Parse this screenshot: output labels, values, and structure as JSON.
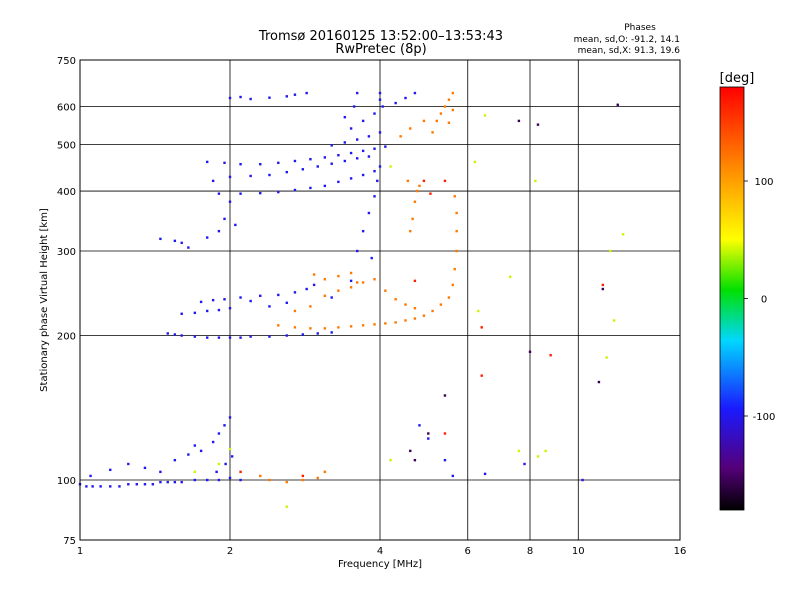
{
  "chart_data": {
    "type": "scatter",
    "title": "Tromsø 20160125 13:52:00–13:53:43",
    "subtitle": "RwPretec (8p)",
    "xlabel": "Frequency [MHz]",
    "ylabel": "Stationary phase Virtual Height [km]",
    "x_scale": "log",
    "y_scale": "log",
    "xlim": [
      1,
      16
    ],
    "ylim": [
      75,
      750
    ],
    "x_ticks": [
      1,
      2,
      4,
      6,
      8,
      10,
      16
    ],
    "x_tick_labels": [
      "1",
      "2",
      "4",
      "6",
      "8",
      "10",
      "16"
    ],
    "y_ticks": [
      75,
      100,
      200,
      300,
      400,
      500,
      600,
      750
    ],
    "y_tick_labels": [
      "75",
      "100",
      "200",
      "300",
      "400",
      "500",
      "600",
      "750"
    ],
    "grid": true,
    "stats": {
      "heading": "Phases",
      "line_o": "mean, sd,O: -91.2, 14.1",
      "line_x": "mean, sd,X:  91.3, 19.6"
    },
    "colorbar": {
      "label": "[deg]",
      "range": [
        -180,
        180
      ],
      "ticks": [
        100,
        0,
        -100
      ],
      "tick_labels": [
        "100",
        "0",
        "-100"
      ],
      "colormap": "rainbow: black(-180) → purple → blue → cyan → green → yellow → orange → red(180)"
    },
    "series": [
      {
        "phase": -100,
        "points": [
          [
            1.0,
            98
          ],
          [
            1.03,
            97
          ],
          [
            1.06,
            97
          ],
          [
            1.1,
            97
          ],
          [
            1.15,
            97
          ],
          [
            1.2,
            97
          ],
          [
            1.25,
            98
          ],
          [
            1.3,
            98
          ],
          [
            1.35,
            98
          ],
          [
            1.4,
            98
          ],
          [
            1.45,
            99
          ],
          [
            1.5,
            99
          ],
          [
            1.55,
            99
          ],
          [
            1.6,
            99
          ],
          [
            1.7,
            100
          ],
          [
            1.8,
            100
          ],
          [
            1.9,
            100
          ],
          [
            2.0,
            101
          ],
          [
            2.1,
            100
          ],
          [
            1.05,
            102
          ],
          [
            1.15,
            105
          ],
          [
            1.25,
            108
          ],
          [
            1.35,
            106
          ],
          [
            1.45,
            104
          ],
          [
            1.55,
            110
          ],
          [
            1.65,
            113
          ],
          [
            1.7,
            118
          ],
          [
            1.75,
            115
          ],
          [
            1.85,
            120
          ],
          [
            1.9,
            125
          ],
          [
            1.95,
            130
          ],
          [
            2.0,
            135
          ],
          [
            2.02,
            112
          ],
          [
            1.96,
            108
          ],
          [
            1.88,
            104
          ],
          [
            1.5,
            202
          ],
          [
            1.55,
            201
          ],
          [
            1.6,
            200
          ],
          [
            1.7,
            199
          ],
          [
            1.8,
            198
          ],
          [
            1.9,
            198
          ],
          [
            2.0,
            198
          ],
          [
            2.1,
            198
          ],
          [
            2.2,
            199
          ],
          [
            2.4,
            199
          ],
          [
            2.6,
            200
          ],
          [
            2.8,
            201
          ],
          [
            3.0,
            202
          ],
          [
            3.2,
            203
          ],
          [
            1.6,
            222
          ],
          [
            1.7,
            223
          ],
          [
            1.8,
            225
          ],
          [
            1.9,
            226
          ],
          [
            2.0,
            228
          ],
          [
            1.75,
            235
          ],
          [
            1.85,
            237
          ],
          [
            1.95,
            238
          ],
          [
            2.1,
            240
          ],
          [
            2.3,
            242
          ],
          [
            2.5,
            243
          ],
          [
            2.7,
            246
          ],
          [
            2.85,
            250
          ],
          [
            2.95,
            255
          ],
          [
            2.6,
            234
          ],
          [
            2.4,
            230
          ],
          [
            2.2,
            236
          ],
          [
            1.45,
            318
          ],
          [
            1.55,
            315
          ],
          [
            1.6,
            312
          ],
          [
            1.65,
            305
          ],
          [
            1.8,
            320
          ],
          [
            1.9,
            330
          ],
          [
            1.95,
            350
          ],
          [
            2.0,
            380
          ],
          [
            2.05,
            340
          ],
          [
            1.9,
            395
          ],
          [
            2.1,
            395
          ],
          [
            2.3,
            396
          ],
          [
            2.5,
            398
          ],
          [
            2.7,
            402
          ],
          [
            2.9,
            406
          ],
          [
            3.1,
            410
          ],
          [
            3.3,
            418
          ],
          [
            3.5,
            425
          ],
          [
            3.7,
            432
          ],
          [
            3.9,
            440
          ],
          [
            1.85,
            420
          ],
          [
            2.0,
            428
          ],
          [
            2.2,
            430
          ],
          [
            2.4,
            432
          ],
          [
            2.6,
            438
          ],
          [
            2.8,
            444
          ],
          [
            3.0,
            450
          ],
          [
            3.2,
            456
          ],
          [
            3.4,
            462
          ],
          [
            3.6,
            468
          ],
          [
            3.8,
            472
          ],
          [
            1.8,
            460
          ],
          [
            1.95,
            458
          ],
          [
            2.1,
            455
          ],
          [
            2.3,
            455
          ],
          [
            2.5,
            458
          ],
          [
            2.7,
            462
          ],
          [
            2.9,
            466
          ],
          [
            3.1,
            470
          ],
          [
            3.3,
            475
          ],
          [
            3.5,
            480
          ],
          [
            3.7,
            485
          ],
          [
            3.9,
            490
          ],
          [
            4.1,
            495
          ],
          [
            3.2,
            498
          ],
          [
            3.4,
            505
          ],
          [
            3.6,
            512
          ],
          [
            3.8,
            520
          ],
          [
            4.0,
            530
          ],
          [
            3.5,
            540
          ],
          [
            3.7,
            560
          ],
          [
            3.9,
            580
          ],
          [
            4.0,
            620
          ],
          [
            4.0,
            640
          ],
          [
            4.05,
            600
          ],
          [
            4.3,
            610
          ],
          [
            4.5,
            625
          ],
          [
            4.7,
            640
          ],
          [
            3.4,
            570
          ],
          [
            3.55,
            600
          ],
          [
            3.6,
            640
          ],
          [
            2.0,
            625
          ],
          [
            2.1,
            628
          ],
          [
            2.2,
            622
          ],
          [
            2.4,
            626
          ],
          [
            2.6,
            630
          ],
          [
            2.7,
            635
          ],
          [
            2.85,
            640
          ],
          [
            3.6,
            300
          ],
          [
            3.7,
            330
          ],
          [
            3.8,
            360
          ],
          [
            3.9,
            390
          ],
          [
            3.95,
            420
          ],
          [
            4.0,
            450
          ],
          [
            3.85,
            290
          ],
          [
            3.5,
            260
          ],
          [
            3.2,
            240
          ],
          [
            5.0,
            122
          ],
          [
            5.4,
            110
          ],
          [
            5.6,
            102
          ],
          [
            4.8,
            130
          ],
          [
            10.2,
            100
          ],
          [
            6.5,
            103
          ],
          [
            7.8,
            108
          ]
        ]
      },
      {
        "phase": 120,
        "points": [
          [
            2.5,
            210
          ],
          [
            2.7,
            208
          ],
          [
            2.9,
            207
          ],
          [
            3.1,
            207
          ],
          [
            3.3,
            208
          ],
          [
            3.5,
            209
          ],
          [
            3.7,
            210
          ],
          [
            3.9,
            211
          ],
          [
            4.1,
            212
          ],
          [
            4.3,
            213
          ],
          [
            4.5,
            215
          ],
          [
            4.7,
            217
          ],
          [
            4.9,
            220
          ],
          [
            5.1,
            225
          ],
          [
            5.3,
            232
          ],
          [
            5.5,
            240
          ],
          [
            5.6,
            255
          ],
          [
            5.65,
            275
          ],
          [
            5.7,
            300
          ],
          [
            5.7,
            330
          ],
          [
            5.7,
            360
          ],
          [
            5.65,
            390
          ],
          [
            2.7,
            225
          ],
          [
            2.9,
            230
          ],
          [
            3.1,
            242
          ],
          [
            3.3,
            248
          ],
          [
            3.5,
            252
          ],
          [
            3.7,
            258
          ],
          [
            3.9,
            262
          ],
          [
            4.1,
            248
          ],
          [
            4.3,
            238
          ],
          [
            4.5,
            232
          ],
          [
            4.7,
            228
          ],
          [
            3.1,
            262
          ],
          [
            3.3,
            266
          ],
          [
            3.5,
            270
          ],
          [
            3.6,
            258
          ],
          [
            2.95,
            268
          ],
          [
            4.6,
            330
          ],
          [
            4.65,
            350
          ],
          [
            4.7,
            380
          ],
          [
            4.75,
            400
          ],
          [
            4.8,
            410
          ],
          [
            4.55,
            420
          ],
          [
            5.1,
            530
          ],
          [
            5.2,
            560
          ],
          [
            5.3,
            580
          ],
          [
            5.4,
            600
          ],
          [
            5.5,
            620
          ],
          [
            5.6,
            640
          ],
          [
            5.6,
            590
          ],
          [
            5.5,
            555
          ],
          [
            4.4,
            520
          ],
          [
            4.6,
            540
          ],
          [
            4.9,
            560
          ],
          [
            2.4,
            100
          ],
          [
            2.6,
            99
          ],
          [
            2.8,
            100
          ],
          [
            3.0,
            101
          ],
          [
            3.1,
            104
          ],
          [
            2.3,
            102
          ]
        ]
      },
      {
        "phase": 165,
        "points": [
          [
            4.9,
            420
          ],
          [
            5.05,
            395
          ],
          [
            5.4,
            420
          ],
          [
            6.4,
            208
          ],
          [
            6.4,
            165
          ],
          [
            5.4,
            125
          ],
          [
            4.7,
            260
          ],
          [
            2.1,
            104
          ],
          [
            2.8,
            102
          ],
          [
            8.8,
            182
          ],
          [
            11.2,
            255
          ]
        ]
      },
      {
        "phase": 40,
        "points": [
          [
            1.9,
            108
          ],
          [
            2.0,
            116
          ],
          [
            1.7,
            104
          ],
          [
            2.6,
            88
          ],
          [
            4.2,
            110
          ],
          [
            6.2,
            460
          ],
          [
            6.3,
            225
          ],
          [
            7.6,
            115
          ],
          [
            8.3,
            112
          ],
          [
            8.6,
            115
          ],
          [
            11.4,
            180
          ],
          [
            11.6,
            300
          ],
          [
            12.3,
            325
          ],
          [
            4.2,
            450
          ],
          [
            6.5,
            575
          ],
          [
            7.3,
            265
          ],
          [
            8.2,
            420
          ],
          [
            11.8,
            215
          ]
        ]
      },
      {
        "phase": -155,
        "points": [
          [
            4.6,
            115
          ],
          [
            5.4,
            150
          ],
          [
            8.0,
            185
          ],
          [
            11.0,
            160
          ],
          [
            11.2,
            250
          ],
          [
            12.0,
            605
          ],
          [
            8.3,
            550
          ],
          [
            7.6,
            560
          ],
          [
            5.0,
            125
          ],
          [
            4.7,
            110
          ]
        ]
      }
    ]
  }
}
